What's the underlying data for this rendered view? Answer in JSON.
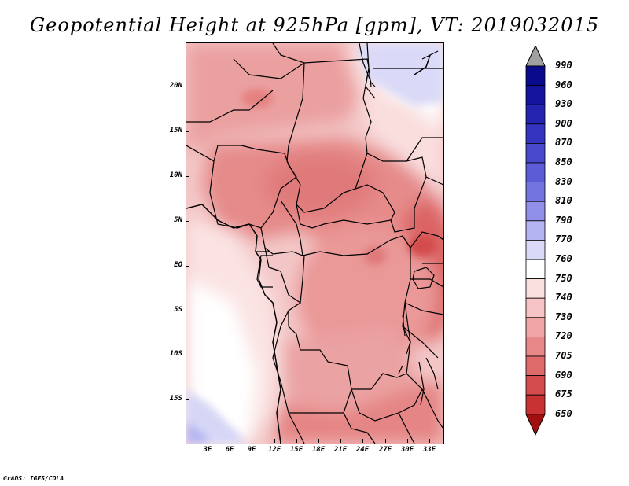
{
  "title": "Geopotential Height at 925hPa [gpm], VT: 2019032015",
  "footer": "GrADS: IGES/COLA",
  "map": {
    "lat_ticks": [
      "20N",
      "15N",
      "10N",
      "5N",
      "EQ",
      "5S",
      "10S",
      "15S"
    ],
    "lon_ticks": [
      "3E",
      "6E",
      "9E",
      "12E",
      "15E",
      "18E",
      "21E",
      "24E",
      "27E",
      "30E",
      "33E"
    ]
  },
  "colorbar": {
    "labels": [
      "990",
      "960",
      "930",
      "900",
      "870",
      "850",
      "830",
      "810",
      "790",
      "770",
      "760",
      "750",
      "740",
      "730",
      "720",
      "705",
      "690",
      "675",
      "650"
    ],
    "colors": [
      "#0a0a8c",
      "#14149e",
      "#2424b0",
      "#3434c0",
      "#4848cc",
      "#5c5cd6",
      "#7474e0",
      "#9090ea",
      "#b4b4f2",
      "#dadaf8",
      "#ffffff",
      "#fbe0e0",
      "#f6c4c4",
      "#f0a6a6",
      "#e88888",
      "#df6a6a",
      "#d44c4c",
      "#c83232",
      "#b41c1c",
      "#a01010"
    ]
  }
}
